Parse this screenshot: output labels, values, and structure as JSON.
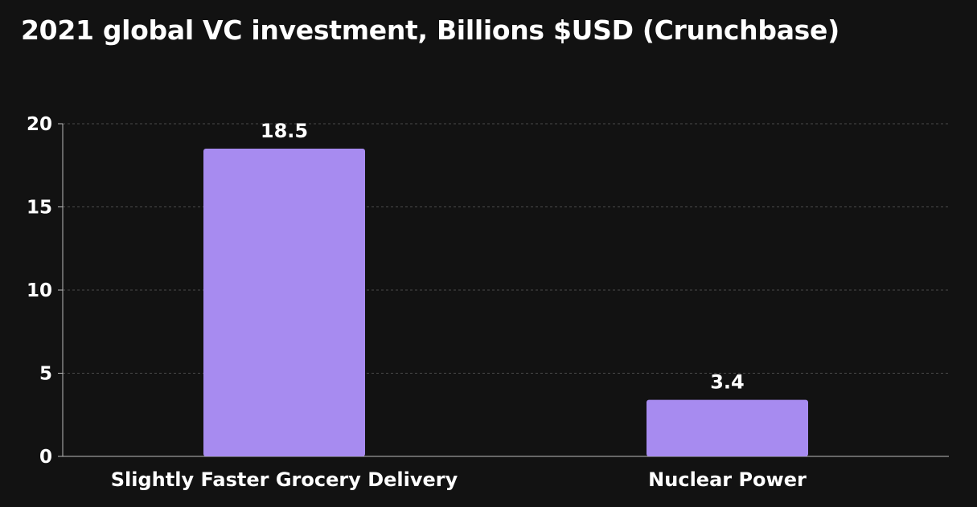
{
  "chart_data": {
    "type": "bar",
    "title": "2021 global VC investment, Billions $USD (Crunchbase)",
    "categories": [
      "Slightly Faster Grocery Delivery",
      "Nuclear Power"
    ],
    "values": [
      18.5,
      3.4
    ],
    "data_labels": [
      "18.5",
      "3.4"
    ],
    "xlabel": "",
    "ylabel": "",
    "ylim": [
      0,
      20
    ],
    "yticks": [
      0,
      5,
      10,
      15,
      20
    ],
    "grid": true,
    "bar_color": "#a78bf0",
    "background_color": "#121212",
    "text_color": "#ffffff",
    "grid_color": "#4a4a4a"
  }
}
